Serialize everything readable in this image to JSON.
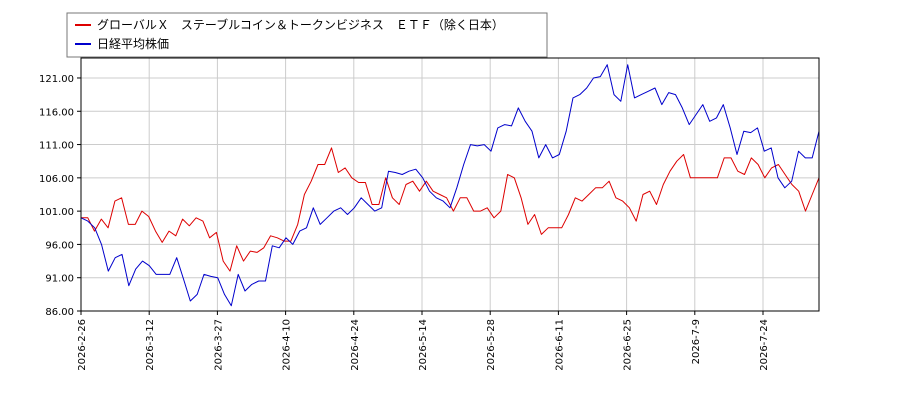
{
  "chart_data": {
    "type": "line",
    "title": "",
    "xlabel": "",
    "ylabel": "",
    "ylim": [
      86.0,
      124.0
    ],
    "y_ticks": [
      "86.00",
      "91.00",
      "96.00",
      "101.00",
      "106.00",
      "111.00",
      "116.00",
      "121.00"
    ],
    "x_ticks": [
      "2026-2-26",
      "2026-3-12",
      "2026-3-27",
      "2026-4-10",
      "2026-4-24",
      "2026-5-14",
      "2026-5-28",
      "2026-6-11",
      "2026-6-25",
      "2026-7-9",
      "2026-7-24"
    ],
    "grid": true,
    "legend_position": "top-left",
    "series": [
      {
        "name": "グローバルＸ　ステーブルコイン＆トークンビジネス　ＥＴＦ（除く日本）",
        "color": "#dd0000",
        "values": [
          100.0,
          100.0,
          98.0,
          99.8,
          98.5,
          102.5,
          103.0,
          99.0,
          99.0,
          101.0,
          100.2,
          98.0,
          96.3,
          98.0,
          97.3,
          99.8,
          98.8,
          100.0,
          99.5,
          97.0,
          97.8,
          93.5,
          92.0,
          95.8,
          93.5,
          95.0,
          94.8,
          95.5,
          97.3,
          97.0,
          96.5,
          96.5,
          99.0,
          103.5,
          105.5,
          108.0,
          108.0,
          110.5,
          106.8,
          107.5,
          106.0,
          105.3,
          105.3,
          102.0,
          102.0,
          106.0,
          103.0,
          102.0,
          105.0,
          105.5,
          104.0,
          105.5,
          104.0,
          103.5,
          103.0,
          101.0,
          103.0,
          103.0,
          101.0,
          101.0,
          101.5,
          100.0,
          101.0,
          106.5,
          106.0,
          103.0,
          99.0,
          100.5,
          97.5,
          98.5,
          98.5,
          98.5,
          100.5,
          103.0,
          102.5,
          103.5,
          104.5,
          104.5,
          105.5,
          103.0,
          102.5,
          101.5,
          99.5,
          103.5,
          104.0,
          102.0,
          105.0,
          107.0,
          108.5,
          109.5,
          106.0,
          106.0,
          106.0,
          106.0,
          106.0,
          109.0,
          109.0,
          107.0,
          106.5,
          109.0,
          108.0,
          106.0,
          107.5,
          108.0,
          106.5,
          105.0,
          104.0,
          101.0,
          103.5,
          106.0
        ]
      },
      {
        "name": "日経平均株価",
        "color": "#0000cc",
        "values": [
          100.0,
          99.5,
          98.5,
          96.0,
          92.0,
          94.0,
          94.5,
          89.8,
          92.3,
          93.5,
          92.8,
          91.5,
          91.5,
          91.5,
          94.0,
          90.8,
          87.5,
          88.5,
          91.5,
          91.2,
          91.0,
          88.5,
          86.8,
          91.5,
          89.0,
          90.0,
          90.5,
          90.5,
          95.8,
          95.5,
          97.0,
          96.0,
          98.0,
          98.5,
          101.5,
          99.0,
          100.0,
          101.0,
          101.5,
          100.5,
          101.5,
          103.0,
          102.0,
          101.0,
          101.5,
          107.0,
          106.8,
          106.5,
          107.0,
          107.3,
          106.0,
          104.0,
          103.0,
          102.5,
          101.5,
          104.5,
          108.0,
          111.0,
          110.8,
          111.0,
          110.0,
          113.5,
          114.0,
          113.8,
          116.5,
          114.5,
          113.0,
          109.0,
          111.0,
          109.0,
          109.5,
          113.0,
          118.0,
          118.5,
          119.5,
          121.0,
          121.2,
          123.0,
          118.5,
          117.5,
          123.0,
          118.0,
          118.5,
          119.0,
          119.5,
          117.0,
          118.8,
          118.5,
          116.5,
          114.0,
          115.5,
          117.0,
          114.5,
          115.0,
          117.0,
          113.5,
          109.5,
          113.0,
          112.8,
          113.5,
          110.0,
          110.5,
          106.0,
          104.5,
          105.5,
          110.0,
          109.0,
          109.0,
          113.0
        ]
      }
    ]
  }
}
